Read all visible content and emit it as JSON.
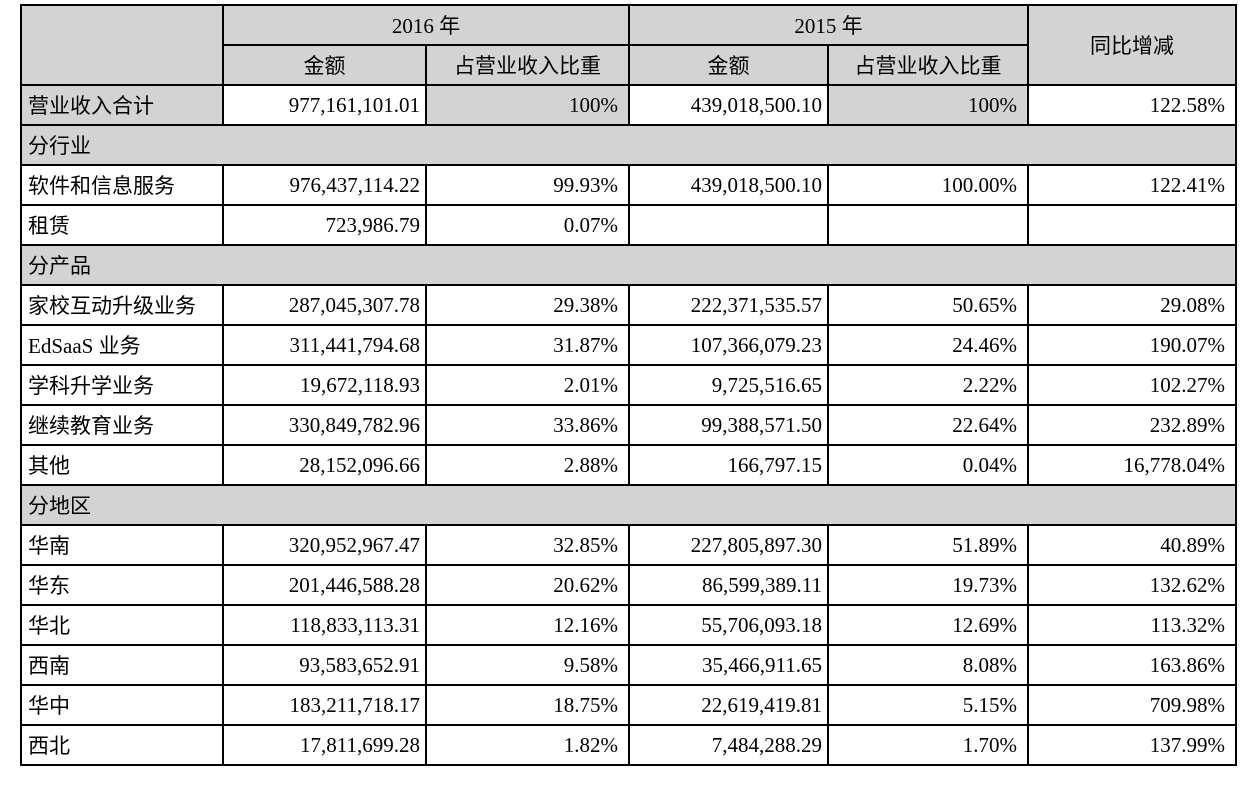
{
  "table": {
    "colors": {
      "shaded_bg": "#d3d3d3",
      "border": "#000000",
      "text": "#000000",
      "row_bg": "#ffffff"
    },
    "columns": {
      "year_2016": "2016 年",
      "year_2015": "2015 年",
      "yoy": "同比增减",
      "amount": "金额",
      "ratio": "占营业收入比重"
    },
    "rows": [
      {
        "type": "data",
        "shaded": true,
        "label": "营业收入合计",
        "amount_2016": "977,161,101.01",
        "ratio_2016": "100%",
        "amount_2015": "439,018,500.10",
        "ratio_2015": "100%",
        "yoy": "122.58%"
      },
      {
        "type": "section",
        "label": "分行业"
      },
      {
        "type": "data",
        "label": "软件和信息服务",
        "amount_2016": "976,437,114.22",
        "ratio_2016": "99.93%",
        "amount_2015": "439,018,500.10",
        "ratio_2015": "100.00%",
        "yoy": "122.41%"
      },
      {
        "type": "data",
        "label": "租赁",
        "amount_2016": "723,986.79",
        "ratio_2016": "0.07%",
        "amount_2015": "",
        "ratio_2015": "",
        "yoy": ""
      },
      {
        "type": "section",
        "label": "分产品"
      },
      {
        "type": "data",
        "label": "家校互动升级业务",
        "amount_2016": "287,045,307.78",
        "ratio_2016": "29.38%",
        "amount_2015": "222,371,535.57",
        "ratio_2015": "50.65%",
        "yoy": "29.08%"
      },
      {
        "type": "data",
        "label": "EdSaaS 业务",
        "amount_2016": "311,441,794.68",
        "ratio_2016": "31.87%",
        "amount_2015": "107,366,079.23",
        "ratio_2015": "24.46%",
        "yoy": "190.07%"
      },
      {
        "type": "data",
        "label": "学科升学业务",
        "amount_2016": "19,672,118.93",
        "ratio_2016": "2.01%",
        "amount_2015": "9,725,516.65",
        "ratio_2015": "2.22%",
        "yoy": "102.27%"
      },
      {
        "type": "data",
        "label": "继续教育业务",
        "amount_2016": "330,849,782.96",
        "ratio_2016": "33.86%",
        "amount_2015": "99,388,571.50",
        "ratio_2015": "22.64%",
        "yoy": "232.89%"
      },
      {
        "type": "data",
        "label": "其他",
        "amount_2016": "28,152,096.66",
        "ratio_2016": "2.88%",
        "amount_2015": "166,797.15",
        "ratio_2015": "0.04%",
        "yoy": "16,778.04%"
      },
      {
        "type": "section",
        "label": "分地区"
      },
      {
        "type": "data",
        "label": "华南",
        "amount_2016": "320,952,967.47",
        "ratio_2016": "32.85%",
        "amount_2015": "227,805,897.30",
        "ratio_2015": "51.89%",
        "yoy": "40.89%"
      },
      {
        "type": "data",
        "label": "华东",
        "amount_2016": "201,446,588.28",
        "ratio_2016": "20.62%",
        "amount_2015": "86,599,389.11",
        "ratio_2015": "19.73%",
        "yoy": "132.62%"
      },
      {
        "type": "data",
        "label": "华北",
        "amount_2016": "118,833,113.31",
        "ratio_2016": "12.16%",
        "amount_2015": "55,706,093.18",
        "ratio_2015": "12.69%",
        "yoy": "113.32%"
      },
      {
        "type": "data",
        "label": "西南",
        "amount_2016": "93,583,652.91",
        "ratio_2016": "9.58%",
        "amount_2015": "35,466,911.65",
        "ratio_2015": "8.08%",
        "yoy": "163.86%"
      },
      {
        "type": "data",
        "label": "华中",
        "amount_2016": "183,211,718.17",
        "ratio_2016": "18.75%",
        "amount_2015": "22,619,419.81",
        "ratio_2015": "5.15%",
        "yoy": "709.98%"
      },
      {
        "type": "data",
        "label": "西北",
        "amount_2016": "17,811,699.28",
        "ratio_2016": "1.82%",
        "amount_2015": "7,484,288.29",
        "ratio_2015": "1.70%",
        "yoy": "137.99%"
      }
    ]
  }
}
